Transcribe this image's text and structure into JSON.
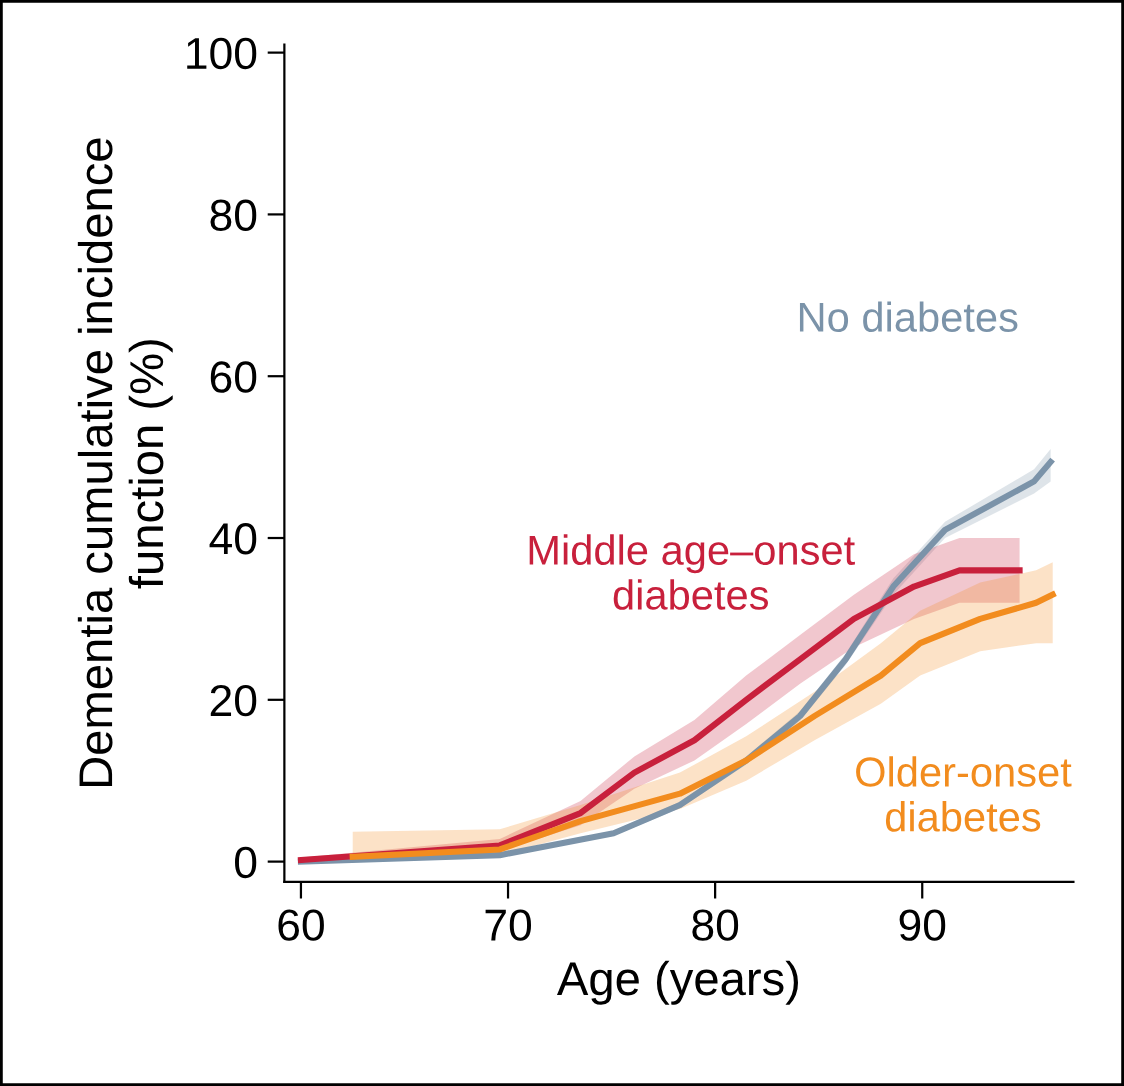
{
  "chart_data": {
    "type": "line",
    "xlabel": "Age (years)",
    "ylabel": "Dementia cumulative incidence\nfunction (%)",
    "xlim": [
      59.2,
      97.3
    ],
    "ylim": [
      -2.5,
      101
    ],
    "xticks": [
      60,
      70,
      80,
      90
    ],
    "yticks": [
      0,
      20,
      40,
      60,
      80,
      100
    ],
    "grid": false,
    "legend": false,
    "series": [
      {
        "name": "No diabetes",
        "color": "#7b93a9",
        "x": [
          60,
          69.6,
          75.1,
          78.3,
          81.5,
          84.1,
          86.3,
          88.6,
          91.1,
          95.4,
          96.2
        ],
        "values": [
          0,
          0.8,
          3.5,
          7,
          12.5,
          18,
          25,
          34,
          41,
          47,
          49.4
        ],
        "lower": [
          0,
          0.6,
          3.2,
          6.6,
          12,
          17.4,
          24.3,
          33,
          40,
          45.5,
          47
        ],
        "upper": [
          0.3,
          1,
          3.8,
          7.4,
          13,
          18.6,
          25.7,
          35,
          42,
          48.5,
          51
        ]
      },
      {
        "name": "Middle age–onset\ndiabetes",
        "color": "#c8203c",
        "x": [
          60,
          69.6,
          73.5,
          76.1,
          79,
          81.5,
          84.1,
          86.7,
          89.6,
          91.8,
          94.7
        ],
        "values": [
          0.2,
          2,
          6,
          11,
          15,
          20,
          25,
          30,
          34,
          36,
          36
        ],
        "lower": [
          0,
          1.3,
          4.5,
          9,
          12.5,
          17,
          22,
          26.5,
          30,
          32,
          32
        ],
        "upper": [
          0.5,
          2.8,
          7.5,
          13,
          17.5,
          23,
          28,
          33,
          38,
          40,
          40
        ]
      },
      {
        "name": "Older-onset\ndiabetes",
        "color": "#f28c1e",
        "x": [
          62.5,
          69.6,
          73.5,
          78.3,
          81.5,
          84.8,
          88,
          89.9,
          92.8,
          95.5,
          96.3
        ],
        "values": [
          0.6,
          1.5,
          5,
          8.4,
          12.5,
          18,
          23,
          27,
          30,
          32,
          33
        ],
        "lower": [
          0.2,
          0.8,
          3.5,
          6.5,
          10,
          15,
          19.5,
          23,
          26,
          27,
          27
        ],
        "upper": [
          3.7,
          4,
          7,
          11,
          15.5,
          21,
          27,
          31,
          34.5,
          36,
          37
        ]
      }
    ]
  }
}
